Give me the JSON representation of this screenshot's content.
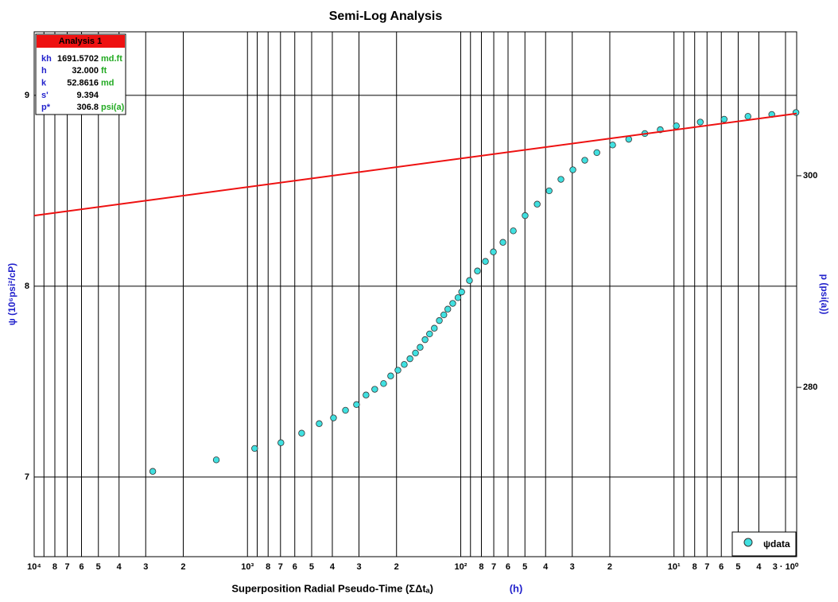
{
  "chart_data": {
    "type": "scatter",
    "title": "Semi-Log Analysis",
    "x_label": "Superposition Radial Pseudo-Time (ΣΔtₐ)",
    "x_unit": "(h)",
    "y_label": "ψ (10⁶psi²/cP)",
    "y2_label": "p (psi(a))",
    "log_x": true,
    "grid": true,
    "xlim": [
      10000,
      2.66
    ],
    "ylim": [
      6.583,
      9.333
    ],
    "y2lim": [
      264.0,
      313.6
    ],
    "xticks": [
      {
        "value": 10000,
        "label": "10⁴"
      },
      {
        "value": 8000,
        "label": "8"
      },
      {
        "value": 7000,
        "label": "7"
      },
      {
        "value": 6000,
        "label": "6"
      },
      {
        "value": 5000,
        "label": "5"
      },
      {
        "value": 4000,
        "label": "4"
      },
      {
        "value": 3000,
        "label": "3"
      },
      {
        "value": 2000,
        "label": "2"
      },
      {
        "value": 1000,
        "label": "10³"
      },
      {
        "value": 800,
        "label": "8"
      },
      {
        "value": 700,
        "label": "7"
      },
      {
        "value": 600,
        "label": "6"
      },
      {
        "value": 500,
        "label": "5"
      },
      {
        "value": 400,
        "label": "4"
      },
      {
        "value": 300,
        "label": "3"
      },
      {
        "value": 200,
        "label": "2"
      },
      {
        "value": 100,
        "label": "10²"
      },
      {
        "value": 80,
        "label": "8"
      },
      {
        "value": 70,
        "label": "7"
      },
      {
        "value": 60,
        "label": "6"
      },
      {
        "value": 50,
        "label": "5"
      },
      {
        "value": 40,
        "label": "4"
      },
      {
        "value": 30,
        "label": "3"
      },
      {
        "value": 20,
        "label": "2"
      },
      {
        "value": 10,
        "label": "10¹"
      },
      {
        "value": 8,
        "label": "8"
      },
      {
        "value": 7,
        "label": "7"
      },
      {
        "value": 6,
        "label": "6"
      },
      {
        "value": 5,
        "label": "5"
      },
      {
        "value": 4,
        "label": "4"
      },
      {
        "value": 3,
        "label": "3 · 10⁰"
      }
    ],
    "xminorticks": [
      9000,
      900,
      90,
      9
    ],
    "yticks": [
      7,
      8,
      9
    ],
    "y2ticks": [
      280,
      300
    ],
    "legend": "bottom-right",
    "series": [
      {
        "name": "ψdata",
        "color": "#40e0e0",
        "x": [
          2780,
          1400,
          925,
          697,
          557,
          461,
          395,
          347,
          308,
          278,
          253,
          230,
          213,
          197,
          184,
          173,
          163,
          155,
          147,
          140,
          133,
          126,
          120,
          115,
          109,
          103,
          99,
          91,
          83.5,
          76.6,
          70.3,
          63.4,
          56.7,
          49.9,
          43.8,
          38.5,
          33.9,
          29.8,
          26.2,
          23.0,
          19.4,
          16.3,
          13.7,
          11.6,
          9.75,
          7.53,
          5.82,
          4.5,
          3.48,
          2.68
        ],
        "values": [
          7.03,
          7.09,
          7.15,
          7.18,
          7.23,
          7.28,
          7.31,
          7.35,
          7.38,
          7.43,
          7.46,
          7.49,
          7.53,
          7.56,
          7.59,
          7.62,
          7.65,
          7.68,
          7.72,
          7.75,
          7.78,
          7.82,
          7.85,
          7.88,
          7.91,
          7.94,
          7.97,
          8.03,
          8.08,
          8.13,
          8.18,
          8.23,
          8.29,
          8.37,
          8.43,
          8.5,
          8.56,
          8.61,
          8.66,
          8.7,
          8.74,
          8.77,
          8.8,
          8.82,
          8.84,
          8.86,
          8.875,
          8.89,
          8.9,
          8.91
        ]
      }
    ],
    "analysis_line": {
      "color": "#ee1111",
      "x": [
        10000,
        2.66
      ],
      "values": [
        8.37,
        8.905
      ]
    },
    "analysis_box": {
      "title": "Analysis 1",
      "rows": [
        [
          "kh",
          "1691.5702",
          "md.ft"
        ],
        [
          "h",
          "32.000",
          "ft"
        ],
        [
          "k",
          "52.8616",
          "md"
        ],
        [
          "s'",
          "9.394"
        ],
        [
          "p*",
          "306.8",
          "psi(a)"
        ]
      ]
    }
  }
}
